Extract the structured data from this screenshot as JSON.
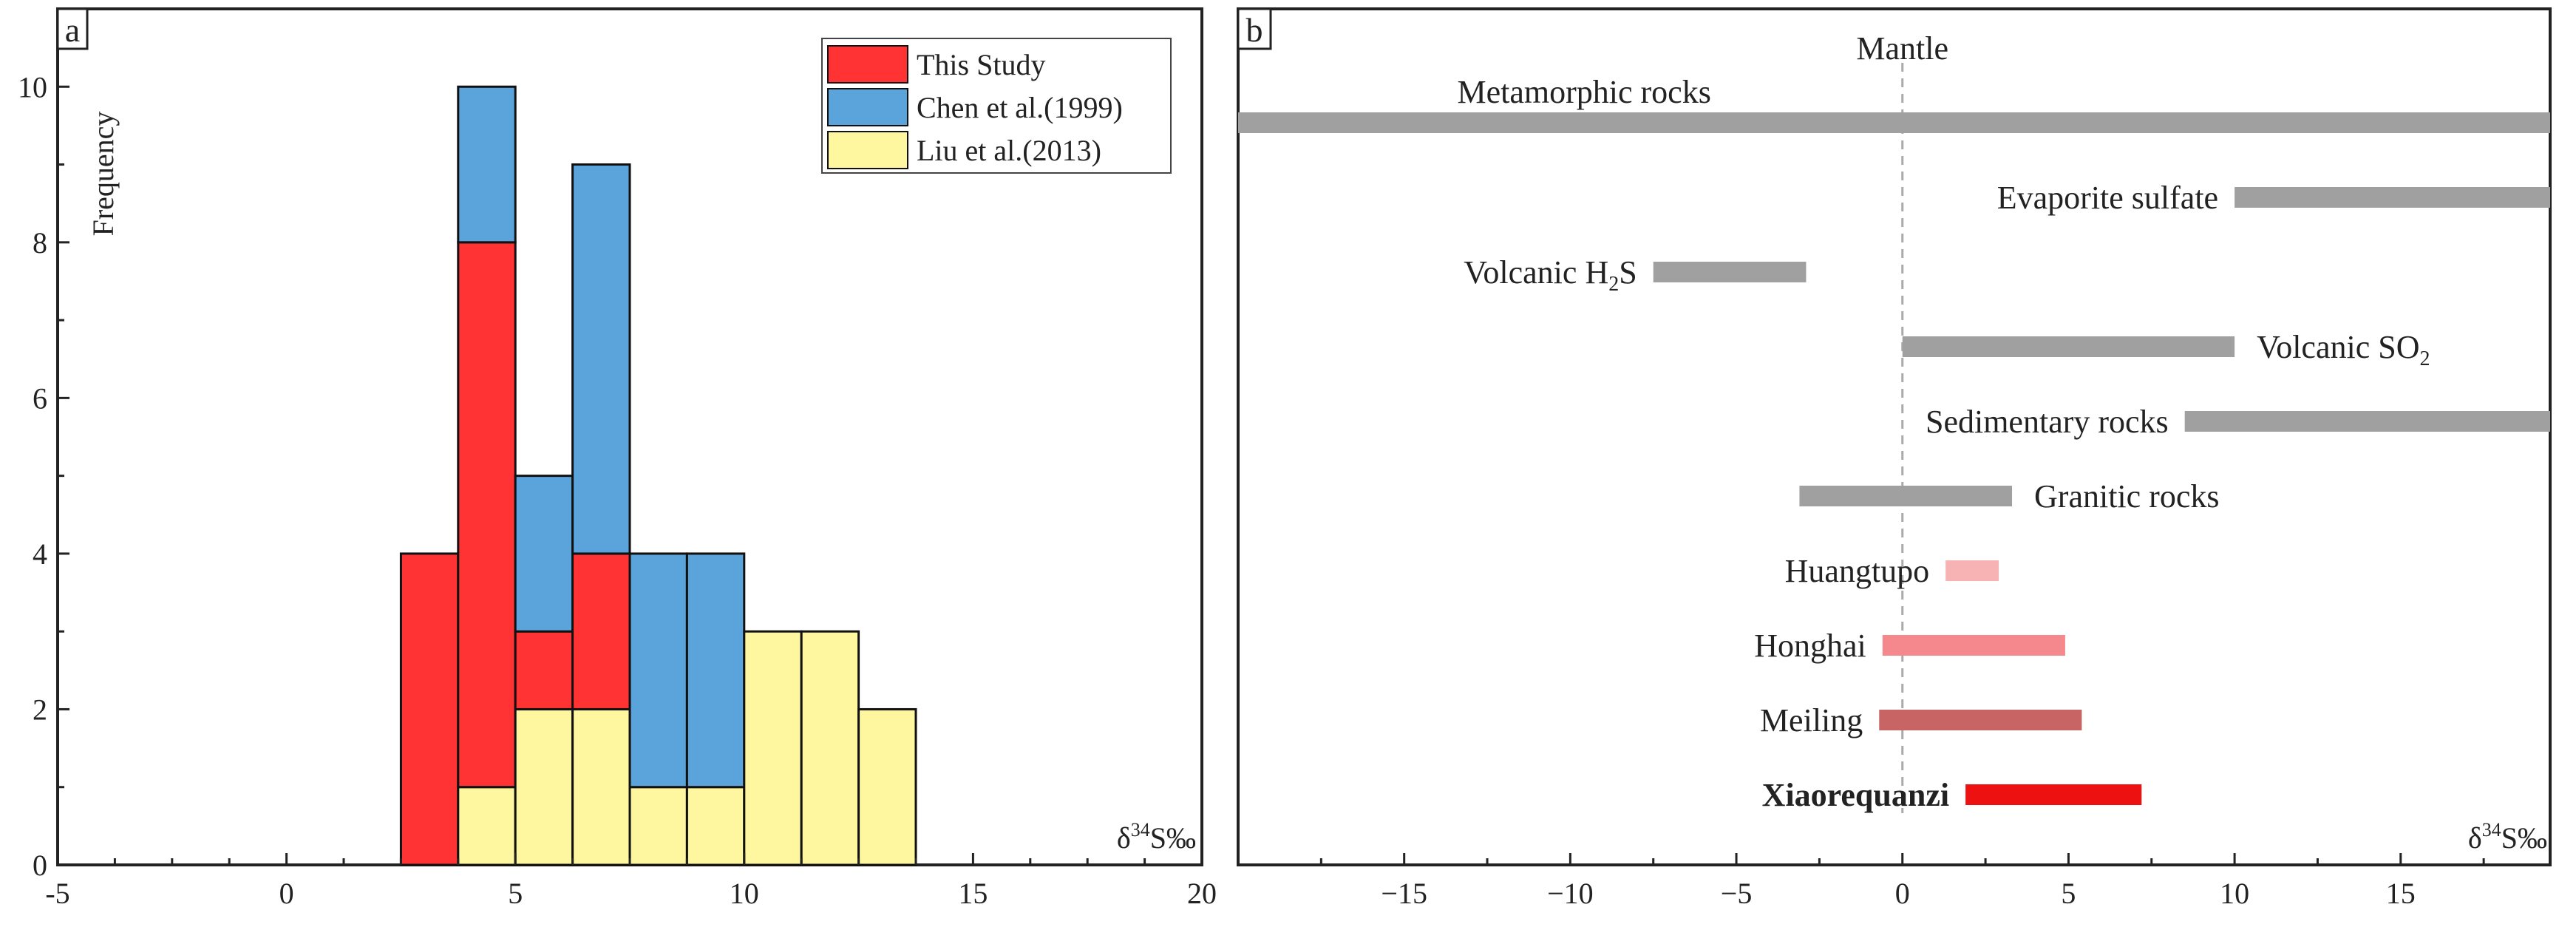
{
  "chart_data": [
    {
      "panel": "a",
      "type": "bar",
      "stacked": true,
      "ylabel": "Frequency",
      "xlabel_main": "δ",
      "xlabel_sup": "34",
      "xlabel_rest": "S‰",
      "xlim": [
        -5,
        20
      ],
      "ylim": [
        0,
        11
      ],
      "xticks": [
        -5,
        0,
        5,
        10,
        15,
        20
      ],
      "yticks": [
        0,
        2,
        4,
        6,
        8,
        10
      ],
      "legend_position": "top-right",
      "series": [
        {
          "name": "This Study",
          "color": "#FF3333"
        },
        {
          "name": "Chen et al.(1999)",
          "color": "#5BA3DB"
        },
        {
          "name": "Liu et al.(2013)",
          "color": "#FFF7A0"
        }
      ],
      "bins": [
        {
          "x0": 2.5,
          "x1": 3.75,
          "counts": [
            4,
            0,
            0
          ]
        },
        {
          "x0": 3.75,
          "x1": 5.0,
          "counts": [
            7,
            2,
            1
          ]
        },
        {
          "x0": 5.0,
          "x1": 6.25,
          "counts": [
            1,
            2,
            2
          ]
        },
        {
          "x0": 6.25,
          "x1": 7.5,
          "counts": [
            2,
            5,
            2
          ]
        },
        {
          "x0": 7.5,
          "x1": 8.75,
          "counts": [
            0,
            3,
            1
          ]
        },
        {
          "x0": 8.75,
          "x1": 10.0,
          "counts": [
            0,
            3,
            1
          ]
        },
        {
          "x0": 10.0,
          "x1": 11.25,
          "counts": [
            0,
            0,
            3
          ]
        },
        {
          "x0": 11.25,
          "x1": 12.5,
          "counts": [
            0,
            0,
            3
          ]
        },
        {
          "x0": 12.5,
          "x1": 13.75,
          "counts": [
            0,
            0,
            2
          ]
        }
      ]
    },
    {
      "panel": "b",
      "type": "range",
      "xlabel_main": "δ",
      "xlabel_sup": "34",
      "xlabel_rest": "S‰",
      "xlim": [
        -20,
        19.5
      ],
      "xticks": [
        -15,
        -10,
        -5,
        0,
        5,
        10,
        15
      ],
      "reference_line": {
        "x": 0,
        "label": "Mantle"
      },
      "ranges": [
        {
          "name": "Metamorphic rocks",
          "sub": "",
          "tail": "",
          "min": -20,
          "max": 19.5,
          "color": "#A0A0A0",
          "label_side": "above",
          "bold": false
        },
        {
          "name": "Evaporite sulfate",
          "sub": "",
          "tail": "",
          "min": 10,
          "max": 19.5,
          "color": "#A0A0A0",
          "label_side": "left",
          "bold": false
        },
        {
          "name": "Volcanic H",
          "sub": "2",
          "tail": "S",
          "min": -7.5,
          "max": -2.9,
          "color": "#A0A0A0",
          "label_side": "left",
          "bold": false
        },
        {
          "name": "Volcanic SO",
          "sub": "2",
          "tail": "",
          "min": 0,
          "max": 10,
          "color": "#A0A0A0",
          "label_side": "right",
          "bold": false
        },
        {
          "name": "Sedimentary rocks",
          "sub": "",
          "tail": "",
          "min": 8.5,
          "max": 19.5,
          "color": "#A0A0A0",
          "label_side": "left",
          "bold": false
        },
        {
          "name": "Granitic rocks",
          "sub": "",
          "tail": "",
          "min": -3.1,
          "max": 3.3,
          "color": "#A0A0A0",
          "label_side": "right",
          "bold": false
        },
        {
          "name": "Huangtupo",
          "sub": "",
          "tail": "",
          "min": 1.3,
          "max": 2.9,
          "color": "#F7B3B3",
          "label_side": "left",
          "bold": false
        },
        {
          "name": "Honghai",
          "sub": "",
          "tail": "",
          "min": -0.6,
          "max": 4.9,
          "color": "#F5888C",
          "label_side": "left",
          "bold": false
        },
        {
          "name": "Meiling",
          "sub": "",
          "tail": "",
          "min": -0.7,
          "max": 5.4,
          "color": "#C86464",
          "label_side": "left",
          "bold": false
        },
        {
          "name": "Xiaorequanzi",
          "sub": "",
          "tail": "",
          "min": 1.9,
          "max": 7.2,
          "color": "#EE1111",
          "label_side": "left",
          "bold": true
        }
      ]
    }
  ],
  "panel_a_tag": "a",
  "panel_b_tag": "b"
}
